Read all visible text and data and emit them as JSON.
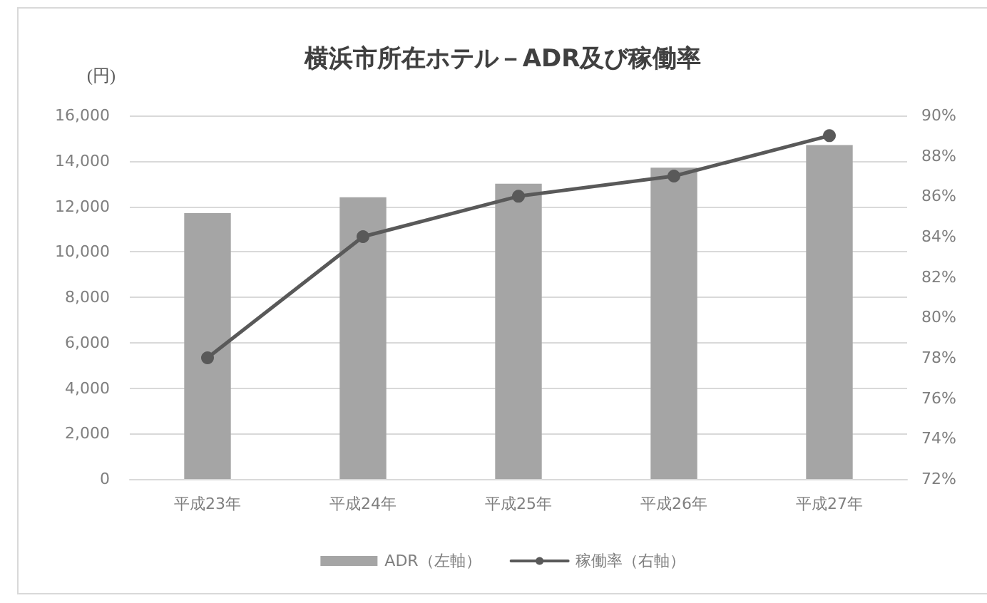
{
  "chart_data": {
    "type": "bar",
    "title": "横浜市所在ホテル－ADR及び稼働率",
    "ylabel": "(円)",
    "categories": [
      "平成23年",
      "平成24年",
      "平成25年",
      "平成26年",
      "平成27年"
    ],
    "series": [
      {
        "name": "ADR（左軸）",
        "color": "#a5a5a5",
        "values": [
          11700,
          12400,
          13000,
          13700,
          14700
        ]
      },
      {
        "name": "稼働率（右軸）",
        "type": "line",
        "axis": "y2",
        "color": "#595959",
        "values": [
          78,
          84,
          86,
          87,
          89
        ]
      }
    ],
    "ylim": [
      0,
      16000
    ],
    "yticks": [
      {
        "value": 0,
        "label": "0"
      },
      {
        "value": 2000,
        "label": "2,000"
      },
      {
        "value": 4000,
        "label": "4,000"
      },
      {
        "value": 6000,
        "label": "6,000"
      },
      {
        "value": 8000,
        "label": "8,000"
      },
      {
        "value": 10000,
        "label": "10,000"
      },
      {
        "value": 12000,
        "label": "12,000"
      },
      {
        "value": 14000,
        "label": "14,000"
      },
      {
        "value": 16000,
        "label": "16,000"
      }
    ],
    "y2lim": [
      72,
      90
    ],
    "y2ticks": [
      {
        "value": 72,
        "label": "72%"
      },
      {
        "value": 74,
        "label": "74%"
      },
      {
        "value": 76,
        "label": "76%"
      },
      {
        "value": 78,
        "label": "78%"
      },
      {
        "value": 80,
        "label": "80%"
      },
      {
        "value": 82,
        "label": "82%"
      },
      {
        "value": 84,
        "label": "84%"
      },
      {
        "value": 86,
        "label": "86%"
      },
      {
        "value": 88,
        "label": "88%"
      },
      {
        "value": 90,
        "label": "90%"
      }
    ],
    "grid": "y",
    "legend": "bottom",
    "marker": "circle"
  }
}
